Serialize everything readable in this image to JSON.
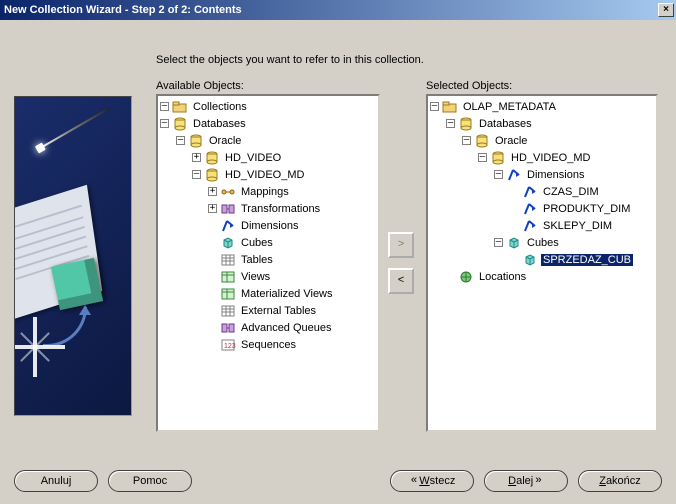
{
  "title": "New Collection Wizard - Step 2 of 2: Contents",
  "instruction": "Select the objects you want to refer to in this collection.",
  "labels": {
    "available": "Available Objects:",
    "selected": "Selected Objects:"
  },
  "buttons": {
    "cancel": "Anuluj",
    "help": "Pomoc",
    "back_arrow": "«",
    "back": "Wstecz",
    "next": "Dalej",
    "next_arrow": "»",
    "finish": "Zakończ",
    "close": "×",
    "move_right": ">",
    "move_left": "<"
  },
  "available_tree": [
    {
      "depth": 0,
      "toggle": "-",
      "icon": "folder",
      "label": "Collections"
    },
    {
      "depth": 0,
      "toggle": "-",
      "icon": "db",
      "label": "Databases"
    },
    {
      "depth": 1,
      "toggle": "-",
      "icon": "db",
      "label": "Oracle"
    },
    {
      "depth": 2,
      "toggle": "+",
      "icon": "db",
      "label": "HD_VIDEO"
    },
    {
      "depth": 2,
      "toggle": "-",
      "icon": "db",
      "label": "HD_VIDEO_MD"
    },
    {
      "depth": 3,
      "toggle": "+",
      "icon": "map",
      "label": "Mappings"
    },
    {
      "depth": 3,
      "toggle": "+",
      "icon": "trans",
      "label": "Transformations"
    },
    {
      "depth": 3,
      "toggle": "",
      "icon": "dim",
      "label": "Dimensions"
    },
    {
      "depth": 3,
      "toggle": "",
      "icon": "cube",
      "label": "Cubes"
    },
    {
      "depth": 3,
      "toggle": "",
      "icon": "tbl",
      "label": "Tables"
    },
    {
      "depth": 3,
      "toggle": "",
      "icon": "view",
      "label": "Views"
    },
    {
      "depth": 3,
      "toggle": "",
      "icon": "view",
      "label": "Materialized Views"
    },
    {
      "depth": 3,
      "toggle": "",
      "icon": "tbl",
      "label": "External Tables"
    },
    {
      "depth": 3,
      "toggle": "",
      "icon": "trans",
      "label": "Advanced Queues"
    },
    {
      "depth": 3,
      "toggle": "",
      "icon": "seq",
      "label": "Sequences"
    }
  ],
  "selected_tree": [
    {
      "depth": 0,
      "toggle": "-",
      "icon": "folder",
      "label": "OLAP_METADATA"
    },
    {
      "depth": 1,
      "toggle": "-",
      "icon": "db",
      "label": "Databases"
    },
    {
      "depth": 2,
      "toggle": "-",
      "icon": "db",
      "label": "Oracle"
    },
    {
      "depth": 3,
      "toggle": "-",
      "icon": "db",
      "label": "HD_VIDEO_MD"
    },
    {
      "depth": 4,
      "toggle": "-",
      "icon": "dim",
      "label": "Dimensions"
    },
    {
      "depth": 5,
      "toggle": "",
      "icon": "dim",
      "label": "CZAS_DIM"
    },
    {
      "depth": 5,
      "toggle": "",
      "icon": "dim",
      "label": "PRODUKTY_DIM"
    },
    {
      "depth": 5,
      "toggle": "",
      "icon": "dim",
      "label": "SKLEPY_DIM"
    },
    {
      "depth": 4,
      "toggle": "-",
      "icon": "cube",
      "label": "Cubes"
    },
    {
      "depth": 5,
      "toggle": "",
      "icon": "cube",
      "label": "SPRZEDAZ_CUB",
      "selected": true
    },
    {
      "depth": 1,
      "toggle": "",
      "icon": "loc",
      "label": "Locations"
    }
  ],
  "colors": {
    "title_grad_from": "#0a246a",
    "title_grad_to": "#a6caf0",
    "face": "#d4d0c8",
    "selection": "#0a246a"
  }
}
